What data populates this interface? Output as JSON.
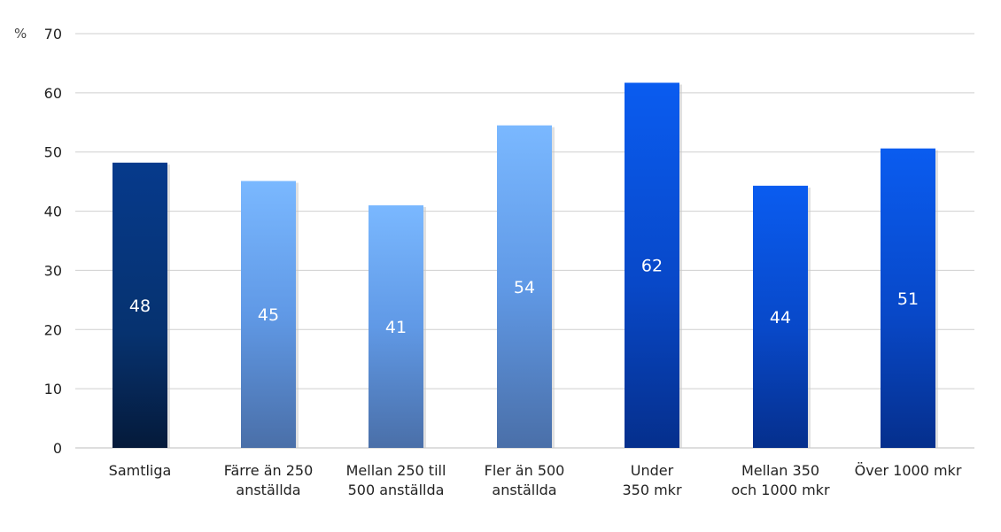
{
  "chart_data": {
    "type": "bar",
    "categories": [
      [
        "Samtliga"
      ],
      [
        "Färre än 250",
        "anställda"
      ],
      [
        "Mellan 250 till",
        "500 anställda"
      ],
      [
        "Fler än 500",
        "anställda"
      ],
      [
        "Under",
        "350 mkr"
      ],
      [
        "Mellan 350",
        "och 1000 mkr"
      ],
      [
        "Över 1000 mkr"
      ]
    ],
    "values": [
      48,
      45,
      41,
      54,
      62,
      44,
      51
    ],
    "bar_values_precise": [
      48.2,
      45.1,
      41.0,
      54.5,
      61.7,
      44.3,
      50.6
    ],
    "ylabel": "%",
    "ylim": [
      0,
      70
    ],
    "yticks": [
      0,
      10,
      20,
      30,
      40,
      50,
      60,
      70
    ],
    "grid": true,
    "legend": "none",
    "colors": [
      "#062a6b",
      "#6aaaf5",
      "#6aaaf5",
      "#6aaaf5",
      "#0a55e8",
      "#0a55e8",
      "#0a55e8"
    ]
  }
}
